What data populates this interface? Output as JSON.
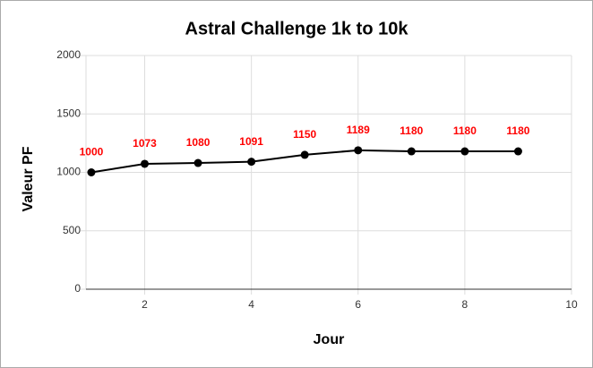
{
  "chart_data": {
    "type": "line",
    "title": "Astral Challenge 1k to 10k",
    "x_label": "Jour",
    "y_label": "Valeur PF",
    "x": [
      1,
      2,
      3,
      4,
      5,
      6,
      7,
      8,
      9
    ],
    "series": [
      {
        "name": "Valeur PF",
        "color": "#000000",
        "label_color": "#ff0000",
        "values": [
          1000,
          1073,
          1080,
          1091,
          1150,
          1189,
          1180,
          1180,
          1180
        ]
      }
    ],
    "xlim": [
      0.9,
      10
    ],
    "xticks": [
      2,
      4,
      6,
      8,
      10
    ],
    "ylim": [
      0,
      2000
    ],
    "yticks": [
      0,
      500,
      1000,
      1500,
      2000
    ],
    "grid": true
  }
}
